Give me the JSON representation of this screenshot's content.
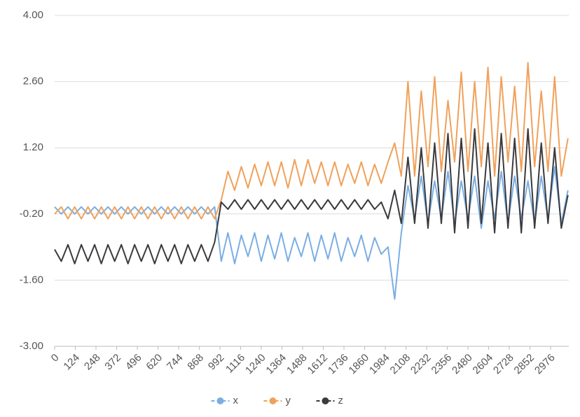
{
  "chart_data": {
    "type": "line",
    "x": [
      0,
      40,
      80,
      120,
      160,
      200,
      240,
      280,
      320,
      360,
      400,
      440,
      480,
      520,
      560,
      600,
      640,
      680,
      720,
      760,
      800,
      840,
      880,
      920,
      960,
      1000,
      1040,
      1080,
      1120,
      1160,
      1200,
      1240,
      1280,
      1320,
      1360,
      1400,
      1440,
      1480,
      1520,
      1560,
      1600,
      1640,
      1680,
      1720,
      1760,
      1800,
      1840,
      1880,
      1920,
      1960,
      2000,
      2040,
      2080,
      2120,
      2160,
      2200,
      2240,
      2280,
      2320,
      2360,
      2400,
      2440,
      2480,
      2520,
      2560,
      2600,
      2640,
      2680,
      2720,
      2760,
      2800,
      2840,
      2880,
      2920,
      2960,
      3000,
      3040,
      3080
    ],
    "series": [
      {
        "name": "x",
        "color": "#7aaee3",
        "values": [
          -0.05,
          -0.2,
          -0.05,
          -0.2,
          -0.05,
          -0.2,
          -0.05,
          -0.2,
          -0.05,
          -0.2,
          -0.05,
          -0.2,
          -0.05,
          -0.2,
          -0.05,
          -0.2,
          -0.05,
          -0.2,
          -0.05,
          -0.2,
          -0.05,
          -0.2,
          -0.05,
          -0.2,
          -0.05,
          -1.2,
          -0.6,
          -1.25,
          -0.65,
          -1.1,
          -0.6,
          -1.2,
          -0.65,
          -1.15,
          -0.6,
          -1.2,
          -0.7,
          -1.1,
          -0.6,
          -1.2,
          -0.65,
          -1.15,
          -0.6,
          -1.2,
          -0.7,
          -1.1,
          -0.65,
          -1.2,
          -0.7,
          -1.05,
          -0.9,
          -2.0,
          -0.6,
          0.4,
          -0.3,
          0.6,
          -0.4,
          0.5,
          -0.3,
          0.7,
          -0.4,
          0.5,
          -0.3,
          0.6,
          -0.5,
          0.5,
          -0.3,
          0.7,
          -0.4,
          0.6,
          -0.3,
          0.5,
          -0.4,
          0.6,
          -0.3,
          0.8,
          -0.4,
          0.3
        ]
      },
      {
        "name": "y",
        "color": "#f0a15a",
        "values": [
          -0.2,
          -0.05,
          -0.3,
          -0.05,
          -0.3,
          -0.05,
          -0.3,
          -0.05,
          -0.3,
          -0.05,
          -0.3,
          -0.05,
          -0.3,
          -0.05,
          -0.3,
          -0.05,
          -0.3,
          -0.05,
          -0.3,
          -0.05,
          -0.3,
          -0.05,
          -0.3,
          -0.05,
          -0.3,
          0.1,
          0.7,
          0.3,
          0.8,
          0.35,
          0.85,
          0.4,
          0.9,
          0.4,
          0.9,
          0.35,
          0.95,
          0.4,
          0.95,
          0.45,
          0.9,
          0.4,
          0.9,
          0.4,
          0.85,
          0.45,
          0.9,
          0.4,
          0.85,
          0.45,
          0.9,
          1.3,
          0.6,
          2.6,
          0.6,
          2.4,
          0.8,
          2.7,
          0.7,
          2.2,
          0.9,
          2.8,
          0.7,
          2.6,
          0.8,
          2.9,
          0.6,
          2.7,
          0.9,
          2.5,
          0.7,
          3.0,
          0.8,
          2.4,
          0.7,
          2.7,
          0.6,
          1.4
        ]
      },
      {
        "name": "z",
        "color": "#3a3a3f",
        "values": [
          -0.95,
          -1.2,
          -0.85,
          -1.25,
          -0.85,
          -1.2,
          -0.85,
          -1.25,
          -0.85,
          -1.2,
          -0.85,
          -1.25,
          -0.85,
          -1.2,
          -0.85,
          -1.25,
          -0.85,
          -1.2,
          -0.85,
          -1.25,
          -0.85,
          -1.2,
          -0.85,
          -1.2,
          -0.8,
          0.05,
          -0.1,
          0.1,
          -0.1,
          0.1,
          -0.1,
          0.1,
          -0.1,
          0.1,
          -0.1,
          0.1,
          -0.1,
          0.1,
          -0.1,
          0.1,
          -0.1,
          0.1,
          -0.1,
          0.1,
          -0.1,
          0.1,
          -0.1,
          0.1,
          -0.1,
          0.05,
          -0.3,
          0.3,
          -0.4,
          1.0,
          -0.4,
          1.2,
          -0.5,
          1.3,
          -0.4,
          1.5,
          -0.6,
          1.4,
          -0.5,
          1.6,
          -0.4,
          1.3,
          -0.6,
          1.5,
          -0.5,
          1.4,
          -0.6,
          1.6,
          -0.5,
          1.3,
          -0.4,
          1.2,
          -0.5,
          0.2
        ]
      }
    ],
    "xlim": [
      0,
      3085
    ],
    "xticks": [
      0,
      124,
      248,
      372,
      496,
      620,
      744,
      868,
      992,
      1116,
      1240,
      1364,
      1488,
      1612,
      1736,
      1860,
      1984,
      2108,
      2232,
      2356,
      2480,
      2604,
      2728,
      2852,
      2976
    ],
    "ylim": [
      -3,
      4
    ],
    "yticks": [
      {
        "value": -3,
        "label": "-3.00"
      },
      {
        "value": -1.6,
        "label": "-1.60"
      },
      {
        "value": -0.2,
        "label": "-0.20"
      },
      {
        "value": 1.2,
        "label": "1.20"
      },
      {
        "value": 2.6,
        "label": "2.60"
      },
      {
        "value": 4,
        "label": "4.00"
      }
    ],
    "grid": true,
    "legend": "bottom"
  }
}
